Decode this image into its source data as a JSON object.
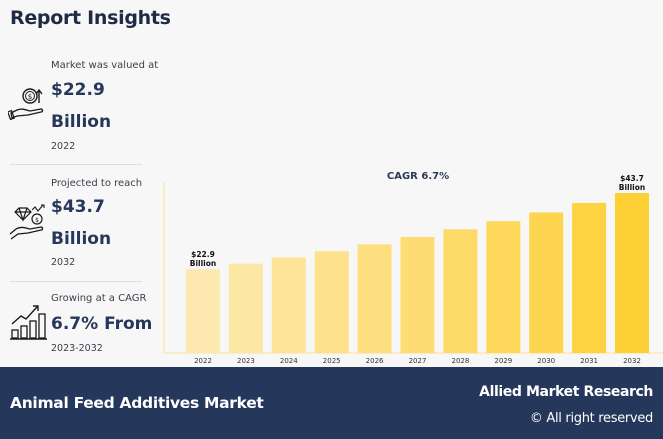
{
  "header": {
    "title": "Report Insights"
  },
  "stats": [
    {
      "label": "Market was valued at",
      "value": "$22.9",
      "unit": "Billion",
      "year": "2022",
      "icon": "money-hand-growth-icon"
    },
    {
      "label": "Projected to reach",
      "value": "$43.7",
      "unit": "Billion",
      "year": "2032",
      "icon": "diamond-money-hand-icon"
    },
    {
      "label": "Growing at a CAGR",
      "value": "6.7% From",
      "year": "2023-2032",
      "icon": "bar-growth-chart-icon"
    }
  ],
  "footer": {
    "market_name": "Animal Feed Additives Market",
    "brand": "Allied Market Research",
    "rights": "© All right reserved"
  },
  "colors": {
    "footer_bg": "#25375a",
    "bar_start": "#fde9b0",
    "bar_end": "#fdd036"
  },
  "chart_data": {
    "type": "bar",
    "title": "CAGR 6.7%",
    "xlabel": "",
    "ylabel": "",
    "categories": [
      "2022",
      "2023",
      "2024",
      "2025",
      "2026",
      "2027",
      "2028",
      "2029",
      "2030",
      "2031",
      "2032"
    ],
    "values": [
      22.9,
      24.4,
      26.1,
      27.8,
      29.7,
      31.7,
      33.8,
      36.0,
      38.4,
      41.0,
      43.7
    ],
    "ylim": [
      0,
      50
    ],
    "grid": false,
    "data_labels": [
      {
        "index": 0,
        "line1": "$22.9",
        "line2": "Billion"
      },
      {
        "index": 10,
        "line1": "$43.7",
        "line2": "Billion"
      }
    ]
  }
}
